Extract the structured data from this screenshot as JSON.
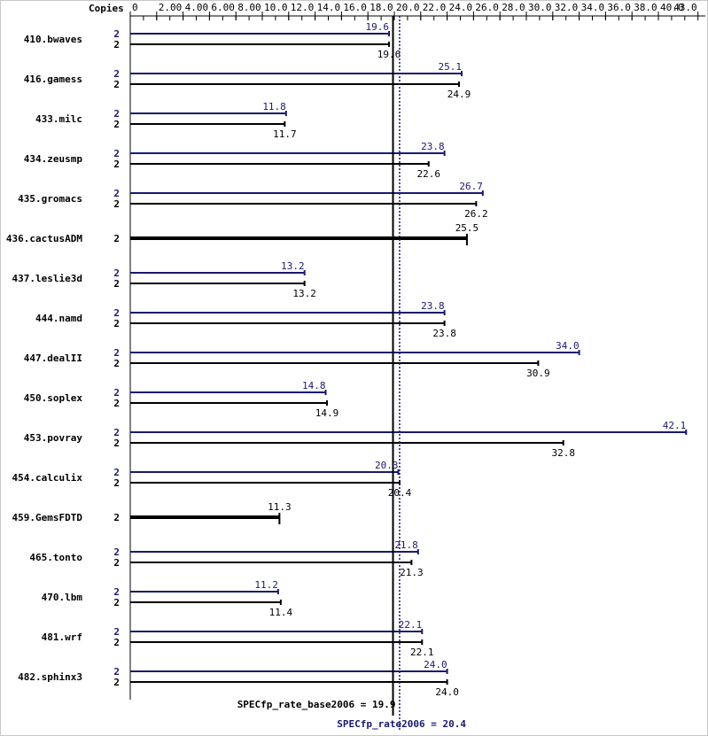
{
  "chart_data": {
    "type": "bar",
    "orientation": "horizontal",
    "x_axis_header": "Copies",
    "xlim": [
      0,
      43.0
    ],
    "ticks": [
      "0",
      "2.00",
      "4.00",
      "6.00",
      "8.00",
      "10.0",
      "12.0",
      "14.0",
      "16.0",
      "18.0",
      "20.0",
      "22.0",
      "24.0",
      "26.0",
      "28.0",
      "30.0",
      "32.0",
      "34.0",
      "36.0",
      "38.0",
      "40.0",
      "43.0"
    ],
    "tick_values": [
      0,
      2,
      4,
      6,
      8,
      10,
      12,
      14,
      16,
      18,
      20,
      22,
      24,
      26,
      28,
      30,
      32,
      34,
      36,
      38,
      40,
      43
    ],
    "categories": [
      "410.bwaves",
      "416.gamess",
      "433.milc",
      "434.zeusmp",
      "435.gromacs",
      "436.cactusADM",
      "437.leslie3d",
      "444.namd",
      "447.dealII",
      "450.soplex",
      "453.povray",
      "454.calculix",
      "459.GemsFDTD",
      "465.tonto",
      "470.lbm",
      "481.wrf",
      "482.sphinx3"
    ],
    "series": [
      {
        "name": "peak",
        "color": "#191970",
        "copies": [
          "2",
          "2",
          "2",
          "2",
          "2",
          null,
          "2",
          "2",
          "2",
          "2",
          "2",
          "2",
          null,
          "2",
          "2",
          "2",
          "2"
        ],
        "values": [
          19.6,
          25.1,
          11.8,
          23.8,
          26.7,
          null,
          13.2,
          23.8,
          34.0,
          14.8,
          42.1,
          20.3,
          null,
          21.8,
          11.2,
          22.1,
          24.0
        ],
        "labels": [
          "19.6",
          "25.1",
          "11.8",
          "23.8",
          "26.7",
          null,
          "13.2",
          "23.8",
          "34.0",
          "14.8",
          "42.1",
          "20.3",
          null,
          "21.8",
          "11.2",
          "22.1",
          "24.0"
        ]
      },
      {
        "name": "base",
        "color": "#000000",
        "copies": [
          "2",
          "2",
          "2",
          "2",
          "2",
          "2",
          "2",
          "2",
          "2",
          "2",
          "2",
          "2",
          "2",
          "2",
          "2",
          "2",
          "2"
        ],
        "values": [
          19.6,
          24.9,
          11.7,
          22.6,
          26.2,
          25.5,
          13.2,
          23.8,
          30.9,
          14.9,
          32.8,
          20.4,
          11.3,
          21.3,
          11.4,
          22.1,
          24.0
        ],
        "labels": [
          "19.6",
          "24.9",
          "11.7",
          "22.6",
          "26.2",
          "25.5",
          "13.2",
          "23.8",
          "30.9",
          "14.9",
          "32.8",
          "20.4",
          "11.3",
          "21.3",
          "11.4",
          "22.1",
          "24.0"
        ]
      }
    ],
    "reference_lines": [
      {
        "label": "SPECfp_rate_base2006 = 19.9",
        "value": 19.9,
        "style": "solid",
        "color": "#000000"
      },
      {
        "label": "SPECfp_rate2006 = 20.4",
        "value": 20.4,
        "style": "dotted",
        "color": "#191970"
      }
    ]
  }
}
